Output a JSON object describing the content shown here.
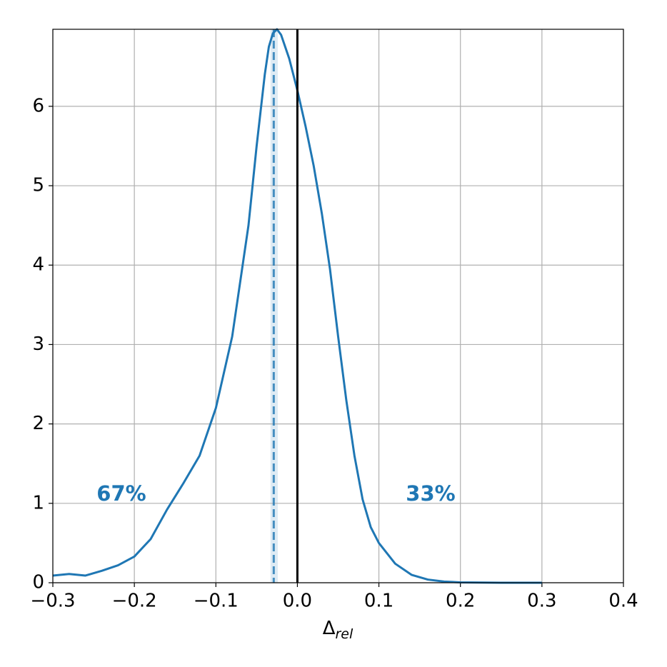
{
  "chart_data": {
    "type": "line",
    "xlabel": {
      "base": "Δ",
      "sub": "rel"
    },
    "x": [
      -0.3,
      -0.28,
      -0.26,
      -0.24,
      -0.22,
      -0.2,
      -0.18,
      -0.16,
      -0.14,
      -0.12,
      -0.1,
      -0.08,
      -0.06,
      -0.05,
      -0.04,
      -0.035,
      -0.03,
      -0.025,
      -0.02,
      -0.01,
      0.0,
      0.01,
      0.02,
      0.03,
      0.04,
      0.05,
      0.06,
      0.07,
      0.08,
      0.09,
      0.1,
      0.12,
      0.14,
      0.16,
      0.18,
      0.2,
      0.25,
      0.3
    ],
    "series": [
      {
        "color": "#1f77b4",
        "values": [
          0.09,
          0.11,
          0.09,
          0.15,
          0.22,
          0.33,
          0.55,
          0.92,
          1.25,
          1.6,
          2.2,
          3.1,
          4.5,
          5.5,
          6.4,
          6.75,
          6.92,
          6.97,
          6.9,
          6.6,
          6.2,
          5.75,
          5.25,
          4.65,
          3.95,
          3.1,
          2.3,
          1.6,
          1.05,
          0.7,
          0.5,
          0.24,
          0.1,
          0.04,
          0.015,
          0.005,
          0.0,
          0.0
        ]
      }
    ],
    "median": -0.029,
    "interval": [
      -0.033,
      -0.024
    ],
    "reference": 0,
    "annotations": [
      "67%",
      "33%"
    ],
    "xlim": [
      -0.3,
      0.4
    ],
    "ylim": [
      0,
      6.97
    ],
    "xticks": [
      {
        "value": -0.3,
        "label": "−0.3"
      },
      {
        "value": -0.2,
        "label": "−0.2"
      },
      {
        "value": -0.1,
        "label": "−0.1"
      },
      {
        "value": 0.0,
        "label": "0.0"
      },
      0.1,
      0.2,
      0.3,
      0.4
    ],
    "yticks": [
      0,
      1,
      2,
      3,
      4,
      5,
      6
    ],
    "grid": true
  }
}
